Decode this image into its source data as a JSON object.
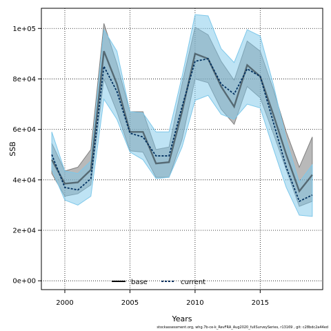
{
  "chart_data": {
    "type": "line",
    "xlabel": "Years",
    "ylabel": "SSB",
    "xlim": [
      1998.2,
      2019.8
    ],
    "ylim": [
      -3500,
      108000
    ],
    "x_ticks": [
      2000,
      2005,
      2010,
      2015
    ],
    "y_ticks": [
      0,
      20000,
      40000,
      60000,
      80000,
      100000
    ],
    "y_tick_labels": [
      "0e+00",
      "2e+04",
      "4e+04",
      "6e+04",
      "8e+04",
      "1e+05"
    ],
    "grid": true,
    "legend_position": "bottom-center",
    "x": [
      1999,
      2000,
      2001,
      2002,
      2003,
      2004,
      2005,
      2006,
      2007,
      2008,
      2009,
      2010,
      2011,
      2012,
      2013,
      2014,
      2015,
      2016,
      2017,
      2018,
      2019
    ],
    "series": [
      {
        "name": "base",
        "color": "#000000",
        "band_color": "#808080",
        "values": [
          48000,
          38500,
          39000,
          44000,
          91000,
          78000,
          59000,
          59000,
          46500,
          47000,
          67000,
          90000,
          88000,
          77000,
          69000,
          85500,
          81000,
          66000,
          50000,
          35500,
          42000
        ],
        "lower": [
          42500,
          33500,
          34500,
          38000,
          80000,
          67000,
          51500,
          51000,
          41000,
          41000,
          56000,
          80000,
          78500,
          68000,
          62000,
          77000,
          72500,
          58500,
          44000,
          29500,
          31500
        ],
        "upper": [
          54500,
          43500,
          45000,
          52000,
          102000,
          86000,
          67000,
          67000,
          52000,
          53000,
          78000,
          100500,
          97500,
          87000,
          79500,
          95000,
          91000,
          76000,
          59000,
          45000,
          57000
        ]
      },
      {
        "name": "current",
        "color": "#003060",
        "band_color": "#7ec8ea",
        "values": [
          50000,
          37000,
          36000,
          40500,
          85000,
          75000,
          58500,
          57000,
          49500,
          49500,
          69000,
          87000,
          88000,
          78000,
          74000,
          84000,
          81000,
          63000,
          45000,
          31500,
          34000
        ],
        "lower": [
          44000,
          32000,
          30000,
          33500,
          72000,
          64000,
          51000,
          48000,
          40500,
          41000,
          53000,
          71500,
          73500,
          66000,
          64000,
          70000,
          68500,
          52500,
          37000,
          26000,
          25500
        ],
        "upper": [
          59000,
          43500,
          42500,
          47500,
          99500,
          91000,
          67000,
          66500,
          59000,
          59000,
          81000,
          105500,
          105000,
          92000,
          86500,
          99500,
          97000,
          78000,
          56000,
          39000,
          46000
        ]
      }
    ]
  },
  "footer_text": "stockassessment.org, whg.7b-ce-k_RevFRA_Aug2020_fullSurveySeries, r13169 , git: c28bdc2a44ed"
}
